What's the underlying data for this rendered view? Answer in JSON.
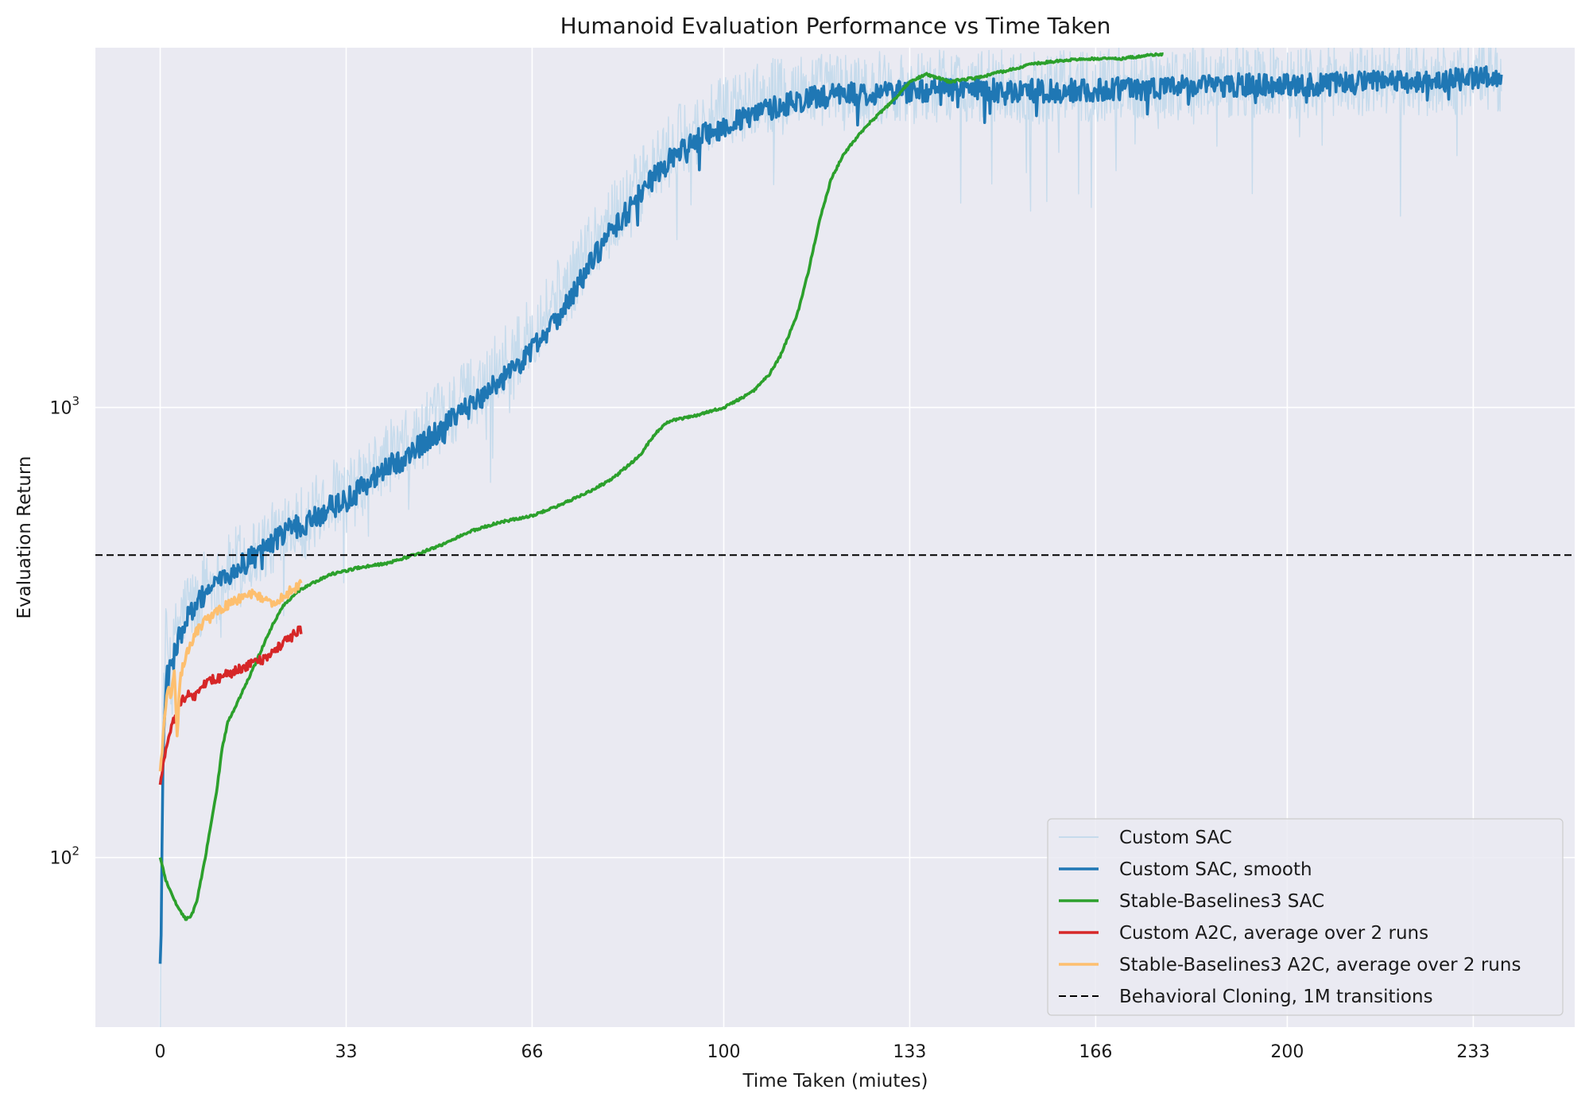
{
  "chart_data": {
    "type": "line",
    "title": "Humanoid Evaluation Performance vs Time Taken",
    "xlabel": "Time Taken (miutes)",
    "ylabel": "Evaluation Return",
    "xscale": "linear",
    "yscale": "log",
    "xlim": [
      -11.5,
      251
    ],
    "ylim": [
      42,
      6300
    ],
    "x_ticks": [
      0,
      33,
      66,
      100,
      133,
      166,
      200,
      233
    ],
    "x_tick_labels": [
      "0",
      "33",
      "66",
      "100",
      "133",
      "166",
      "200",
      "233"
    ],
    "y_ticks": [
      {
        "value": 100,
        "base": "10",
        "exp": "2"
      },
      {
        "value": 1000,
        "base": "10",
        "exp": "3"
      }
    ],
    "grid": true,
    "legend_position": "lower-right",
    "colors": {
      "background": "#eaeaf2",
      "grid": "#ffffff",
      "custom_sac": "#c6dbec",
      "custom_sac_smooth": "#1f77b4",
      "sb3_sac": "#2ca02c",
      "custom_a2c": "#d62728",
      "sb3_a2c": "#fdbf6f",
      "bc": "#000000"
    },
    "series": [
      {
        "name": "Custom SAC",
        "style": "raw",
        "points": [
          [
            0,
            48
          ],
          [
            0.3,
            150
          ],
          [
            0.6,
            230
          ],
          [
            1,
            300
          ],
          [
            2,
            260
          ],
          [
            3,
            330
          ],
          [
            5,
            370
          ],
          [
            7,
            360
          ],
          [
            8,
            420
          ],
          [
            10,
            400
          ],
          [
            12,
            430
          ],
          [
            14,
            460
          ],
          [
            16,
            470
          ],
          [
            18,
            490
          ],
          [
            20,
            510
          ],
          [
            23,
            580
          ],
          [
            26,
            550
          ],
          [
            30,
            640
          ],
          [
            33,
            630
          ],
          [
            37,
            700
          ],
          [
            40,
            770
          ],
          [
            44,
            820
          ],
          [
            48,
            910
          ],
          [
            52,
            1000
          ],
          [
            56,
            1100
          ],
          [
            60,
            1250
          ],
          [
            63,
            1300
          ],
          [
            66,
            1480
          ],
          [
            70,
            1750
          ],
          [
            73,
            1900
          ],
          [
            76,
            2300
          ],
          [
            80,
            2600
          ],
          [
            84,
            3000
          ],
          [
            88,
            3400
          ],
          [
            92,
            3900
          ],
          [
            96,
            4200
          ],
          [
            100,
            4500
          ],
          [
            105,
            4800
          ],
          [
            110,
            5000
          ],
          [
            115,
            5100
          ],
          [
            120,
            5100
          ],
          [
            126,
            5150
          ],
          [
            133,
            5150
          ],
          [
            140,
            5200
          ],
          [
            150,
            5150
          ],
          [
            160,
            5150
          ],
          [
            170,
            5250
          ],
          [
            180,
            5250
          ],
          [
            190,
            5300
          ],
          [
            200,
            5300
          ],
          [
            210,
            5350
          ],
          [
            220,
            5350
          ],
          [
            230,
            5400
          ],
          [
            238,
            5450
          ]
        ]
      },
      {
        "name": "Custom SAC, smooth",
        "style": "smooth",
        "points": [
          [
            0,
            58
          ],
          [
            0.2,
            75
          ],
          [
            0.5,
            160
          ],
          [
            0.8,
            220
          ],
          [
            1.2,
            250
          ],
          [
            2,
            265
          ],
          [
            3,
            300
          ],
          [
            4,
            320
          ],
          [
            5,
            345
          ],
          [
            7,
            370
          ],
          [
            8,
            390
          ],
          [
            10,
            405
          ],
          [
            12,
            420
          ],
          [
            14,
            440
          ],
          [
            16,
            460
          ],
          [
            18,
            480
          ],
          [
            20,
            500
          ],
          [
            23,
            540
          ],
          [
            26,
            550
          ],
          [
            30,
            600
          ],
          [
            33,
            620
          ],
          [
            37,
            680
          ],
          [
            40,
            730
          ],
          [
            44,
            780
          ],
          [
            48,
            860
          ],
          [
            52,
            940
          ],
          [
            56,
            1030
          ],
          [
            60,
            1140
          ],
          [
            63,
            1220
          ],
          [
            66,
            1350
          ],
          [
            70,
            1560
          ],
          [
            73,
            1760
          ],
          [
            76,
            2050
          ],
          [
            80,
            2450
          ],
          [
            84,
            2850
          ],
          [
            88,
            3300
          ],
          [
            92,
            3700
          ],
          [
            96,
            4000
          ],
          [
            100,
            4200
          ],
          [
            105,
            4450
          ],
          [
            110,
            4700
          ],
          [
            115,
            4850
          ],
          [
            120,
            4950
          ],
          [
            126,
            5000
          ],
          [
            133,
            5050
          ],
          [
            140,
            5100
          ],
          [
            150,
            5050
          ],
          [
            160,
            5050
          ],
          [
            170,
            5100
          ],
          [
            180,
            5150
          ],
          [
            190,
            5200
          ],
          [
            200,
            5200
          ],
          [
            210,
            5250
          ],
          [
            220,
            5300
          ],
          [
            230,
            5350
          ],
          [
            238,
            5400
          ]
        ]
      },
      {
        "name": "Stable-Baselines3 SAC",
        "style": "line",
        "points": [
          [
            0,
            100
          ],
          [
            1,
            89
          ],
          [
            3,
            78
          ],
          [
            4.5,
            73
          ],
          [
            5.5,
            74
          ],
          [
            6.5,
            80
          ],
          [
            8,
            100
          ],
          [
            10,
            140
          ],
          [
            11,
            175
          ],
          [
            12,
            200
          ],
          [
            14,
            225
          ],
          [
            16,
            255
          ],
          [
            18,
            290
          ],
          [
            20,
            330
          ],
          [
            22,
            365
          ],
          [
            25,
            395
          ],
          [
            30,
            425
          ],
          [
            35,
            440
          ],
          [
            40,
            450
          ],
          [
            45,
            470
          ],
          [
            50,
            495
          ],
          [
            55,
            530
          ],
          [
            60,
            555
          ],
          [
            66,
            575
          ],
          [
            70,
            600
          ],
          [
            75,
            640
          ],
          [
            80,
            690
          ],
          [
            85,
            780
          ],
          [
            88,
            880
          ],
          [
            90,
            930
          ],
          [
            95,
            960
          ],
          [
            100,
            1000
          ],
          [
            105,
            1080
          ],
          [
            108,
            1180
          ],
          [
            110,
            1300
          ],
          [
            113,
            1600
          ],
          [
            115,
            2000
          ],
          [
            117,
            2600
          ],
          [
            119,
            3200
          ],
          [
            121,
            3600
          ],
          [
            123,
            3900
          ],
          [
            126,
            4300
          ],
          [
            130,
            4800
          ],
          [
            133,
            5300
          ],
          [
            136,
            5500
          ],
          [
            140,
            5300
          ],
          [
            145,
            5400
          ],
          [
            150,
            5600
          ],
          [
            155,
            5800
          ],
          [
            160,
            5900
          ],
          [
            165,
            5950
          ],
          [
            170,
            5950
          ],
          [
            175,
            6050
          ],
          [
            178,
            6100
          ]
        ]
      },
      {
        "name": "Custom A2C, average over 2 runs",
        "style": "line",
        "points": [
          [
            0,
            145
          ],
          [
            0.5,
            160
          ],
          [
            1,
            175
          ],
          [
            2,
            195
          ],
          [
            3,
            210
          ],
          [
            4,
            225
          ],
          [
            5,
            230
          ],
          [
            6,
            228
          ],
          [
            7,
            235
          ],
          [
            8,
            245
          ],
          [
            10,
            250
          ],
          [
            12,
            255
          ],
          [
            14,
            262
          ],
          [
            16,
            268
          ],
          [
            18,
            275
          ],
          [
            20,
            285
          ],
          [
            22,
            300
          ],
          [
            24,
            315
          ],
          [
            25,
            320
          ]
        ]
      },
      {
        "name": "Stable-Baselines3 A2C, average over 2 runs",
        "style": "line",
        "points": [
          [
            0,
            155
          ],
          [
            0.5,
            185
          ],
          [
            1,
            215
          ],
          [
            1.5,
            245
          ],
          [
            2,
            225
          ],
          [
            2.5,
            265
          ],
          [
            3,
            185
          ],
          [
            3.5,
            245
          ],
          [
            4,
            265
          ],
          [
            5,
            290
          ],
          [
            6,
            310
          ],
          [
            7,
            325
          ],
          [
            8,
            335
          ],
          [
            10,
            350
          ],
          [
            12,
            365
          ],
          [
            14,
            375
          ],
          [
            16,
            385
          ],
          [
            18,
            380
          ],
          [
            19,
            370
          ],
          [
            20,
            365
          ],
          [
            21,
            372
          ],
          [
            22,
            380
          ],
          [
            23,
            390
          ],
          [
            24,
            398
          ],
          [
            25,
            405
          ]
        ]
      }
    ],
    "hlines": [
      {
        "name": "Behavioral Cloning, 1M transitions",
        "y": 470,
        "style": "dashed"
      }
    ],
    "legend_entries": [
      {
        "label": "Custom SAC",
        "color": "#c6dbec",
        "style": "solid-thin"
      },
      {
        "label": "Custom SAC, smooth",
        "color": "#1f77b4",
        "style": "solid"
      },
      {
        "label": "Stable-Baselines3 SAC",
        "color": "#2ca02c",
        "style": "solid"
      },
      {
        "label": "Custom A2C, average over 2 runs",
        "color": "#d62728",
        "style": "solid"
      },
      {
        "label": "Stable-Baselines3 A2C, average over 2 runs",
        "color": "#fdbf6f",
        "style": "solid"
      },
      {
        "label": "Behavioral Cloning, 1M transitions",
        "color": "#000000",
        "style": "dashed"
      }
    ]
  }
}
